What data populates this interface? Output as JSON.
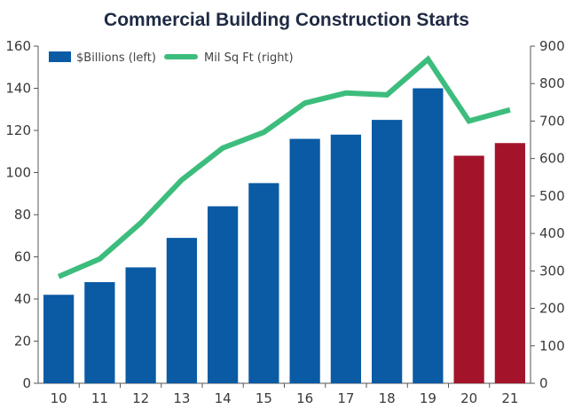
{
  "chart_data": {
    "type": "bar",
    "title": "Commercial Building Construction Starts",
    "categories": [
      "10",
      "11",
      "12",
      "13",
      "14",
      "15",
      "16",
      "17",
      "18",
      "19",
      "20",
      "21"
    ],
    "series": [
      {
        "name": "$Billions (left)",
        "kind": "bar",
        "axis": "left",
        "values": [
          42,
          48,
          55,
          69,
          84,
          95,
          116,
          118,
          125,
          140,
          108,
          114
        ],
        "bar_colors": [
          "#0a5aa4",
          "#0a5aa4",
          "#0a5aa4",
          "#0a5aa4",
          "#0a5aa4",
          "#0a5aa4",
          "#0a5aa4",
          "#0a5aa4",
          "#0a5aa4",
          "#0a5aa4",
          "#a3142a",
          "#a3142a"
        ]
      },
      {
        "name": "Mil Sq Ft (right)",
        "kind": "line",
        "axis": "right",
        "color": "#3dbd7d",
        "values": [
          285,
          332,
          428,
          543,
          628,
          670,
          748,
          775,
          770,
          865,
          700,
          730
        ]
      }
    ],
    "y_left": {
      "min": 0,
      "max": 160,
      "ticks": [
        "0",
        "20",
        "40",
        "60",
        "80",
        "100",
        "120",
        "140",
        "160"
      ]
    },
    "y_right": {
      "min": 0,
      "max": 900,
      "ticks": [
        "0",
        "100",
        "200",
        "300",
        "400",
        "500",
        "600",
        "700",
        "800",
        "900"
      ]
    },
    "grid": false,
    "legend": "top-left"
  }
}
